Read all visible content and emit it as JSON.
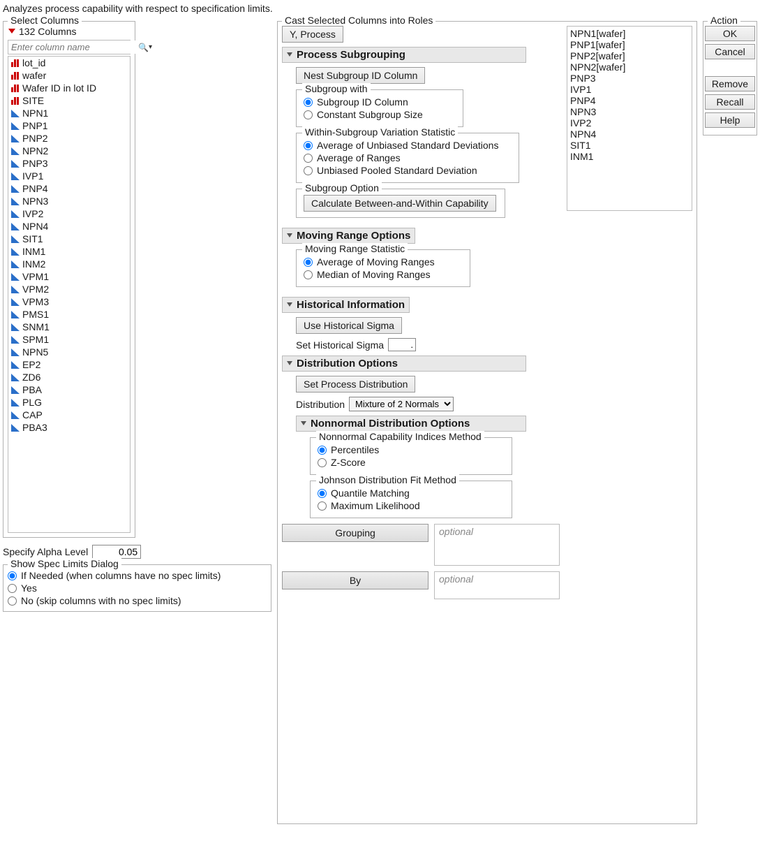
{
  "description": "Analyzes process capability with respect to specification limits.",
  "select_columns": {
    "title": "Select Columns",
    "count_label": "132 Columns",
    "search_placeholder": "Enter column name",
    "items": [
      {
        "name": "lot_id",
        "type": "nom"
      },
      {
        "name": "wafer",
        "type": "nom"
      },
      {
        "name": "Wafer ID in lot ID",
        "type": "nom"
      },
      {
        "name": "SITE",
        "type": "nom"
      },
      {
        "name": "NPN1",
        "type": "cont"
      },
      {
        "name": "PNP1",
        "type": "cont"
      },
      {
        "name": "PNP2",
        "type": "cont"
      },
      {
        "name": "NPN2",
        "type": "cont"
      },
      {
        "name": "PNP3",
        "type": "cont"
      },
      {
        "name": "IVP1",
        "type": "cont"
      },
      {
        "name": "PNP4",
        "type": "cont"
      },
      {
        "name": "NPN3",
        "type": "cont"
      },
      {
        "name": "IVP2",
        "type": "cont"
      },
      {
        "name": "NPN4",
        "type": "cont"
      },
      {
        "name": "SIT1",
        "type": "cont"
      },
      {
        "name": "INM1",
        "type": "cont"
      },
      {
        "name": "INM2",
        "type": "cont"
      },
      {
        "name": "VPM1",
        "type": "cont"
      },
      {
        "name": "VPM2",
        "type": "cont"
      },
      {
        "name": "VPM3",
        "type": "cont"
      },
      {
        "name": "PMS1",
        "type": "cont"
      },
      {
        "name": "SNM1",
        "type": "cont"
      },
      {
        "name": "SPM1",
        "type": "cont"
      },
      {
        "name": "NPN5",
        "type": "cont"
      },
      {
        "name": "EP2",
        "type": "cont"
      },
      {
        "name": "ZD6",
        "type": "cont"
      },
      {
        "name": "PBA",
        "type": "cont"
      },
      {
        "name": "PLG",
        "type": "cont"
      },
      {
        "name": "CAP",
        "type": "cont"
      },
      {
        "name": "PBA3",
        "type": "cont"
      }
    ]
  },
  "alpha": {
    "label": "Specify Alpha Level",
    "value": "0.05"
  },
  "spec_limits": {
    "title": "Show Spec Limits Dialog",
    "options": {
      "if_needed": "If Needed (when columns have no spec limits)",
      "yes": "Yes",
      "no": "No (skip columns with no spec limits)"
    },
    "selected": "if_needed"
  },
  "cast": {
    "title": "Cast Selected Columns into Roles",
    "y_process_btn": "Y, Process",
    "roles_list": [
      "NPN1[wafer]",
      "PNP1[wafer]",
      "PNP2[wafer]",
      "NPN2[wafer]",
      "PNP3",
      "IVP1",
      "PNP4",
      "NPN3",
      "IVP2",
      "NPN4",
      "SIT1",
      "INM1"
    ],
    "process_subgrouping": {
      "header": "Process Subgrouping",
      "nest_btn": "Nest Subgroup ID Column",
      "subgroup_with": {
        "title": "Subgroup with",
        "id_column": "Subgroup ID Column",
        "constant": "Constant Subgroup Size"
      },
      "within_stat": {
        "title": "Within-Subgroup Variation Statistic",
        "avg_unbiased": "Average of Unbiased Standard Deviations",
        "avg_ranges": "Average of Ranges",
        "pooled": "Unbiased Pooled Standard Deviation"
      },
      "subgroup_option": {
        "title": "Subgroup Option",
        "calc_btn": "Calculate Between-and-Within Capability"
      }
    },
    "moving_range": {
      "header": "Moving Range Options",
      "stat": {
        "title": "Moving Range Statistic",
        "avg": "Average of Moving Ranges",
        "median": "Median of Moving Ranges"
      }
    },
    "historical": {
      "header": "Historical Information",
      "use_btn": "Use Historical Sigma",
      "set_label": "Set Historical Sigma",
      "set_value": "."
    },
    "distribution": {
      "header": "Distribution Options",
      "set_btn": "Set Process Distribution",
      "dist_label": "Distribution",
      "dist_value": "Mixture of 2 Normals"
    },
    "nonnormal": {
      "header": "Nonnormal Distribution Options",
      "indices": {
        "title": "Nonnormal Capability Indices Method",
        "percentiles": "Percentiles",
        "zscore": "Z-Score"
      },
      "johnson": {
        "title": "Johnson Distribution Fit Method",
        "quantile": "Quantile Matching",
        "ml": "Maximum Likelihood"
      }
    },
    "grouping_btn": "Grouping",
    "by_btn": "By",
    "optional_placeholder": "optional"
  },
  "action": {
    "title": "Action",
    "ok": "OK",
    "cancel": "Cancel",
    "remove": "Remove",
    "recall": "Recall",
    "help": "Help"
  }
}
